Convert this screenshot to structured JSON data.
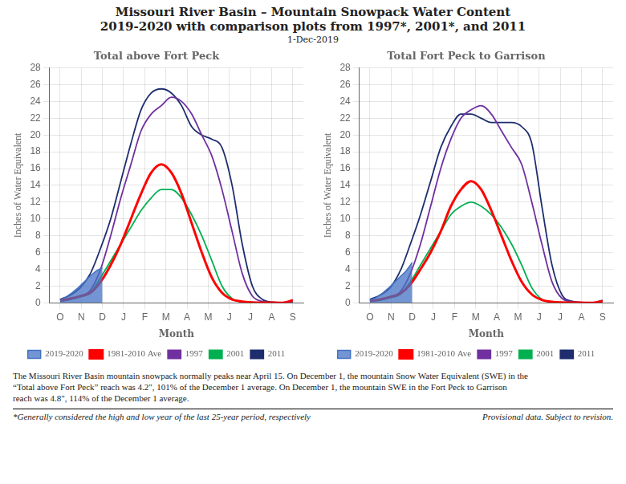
{
  "title": [
    "Missouri River Basin – Mountain Snowpack Water Content",
    "2019-2020 with comparison plots from 1997*, 2001*, and 2011"
  ],
  "subtitle": "1-Dec-2019",
  "annotations": [
    "The Missouri River Basin mountain snowpack normally peaks near April 15.  On December 1, the mountain Snow Water Equivalent (SWE) in the",
    "“Total above Fort Peck” reach was 4.2\", 101% of the December 1 average.  On December 1, the mountain SWE  in the Fort Peck to Garrison",
    "reach was 4.8\", 114% of the December 1 average.",
    "*Generally considered the high and low year of the last 25-year period, respectively",
    "Provisional data. Subject to revision."
  ],
  "chart_data": [
    {
      "type": "line",
      "title": "Total above Fort Peck",
      "x_label": "Month",
      "y_label": "Inches of Water Equivalent",
      "xlim": [
        -0.5,
        11.5
      ],
      "xticks": [
        {
          "value": 0,
          "label": "O"
        },
        {
          "value": 1,
          "label": "N"
        },
        {
          "value": 2,
          "label": "D"
        },
        {
          "value": 3,
          "label": "J"
        },
        {
          "value": 4,
          "label": "F"
        },
        {
          "value": 5,
          "label": "M"
        },
        {
          "value": 6,
          "label": "A"
        },
        {
          "value": 7,
          "label": "M"
        },
        {
          "value": 8,
          "label": "J"
        },
        {
          "value": 9,
          "label": "J"
        },
        {
          "value": 10,
          "label": "A"
        },
        {
          "value": 11,
          "label": "S"
        }
      ],
      "ylim": [
        0,
        28
      ],
      "yticks": [
        0,
        2,
        4,
        6,
        8,
        10,
        12,
        14,
        16,
        18,
        20,
        22,
        24,
        26,
        28
      ],
      "grid": true,
      "legend": "bottom",
      "series": [
        {
          "name": "2019-2020",
          "type": "area",
          "color": "#4472C4",
          "x": [
            0,
            0.2857,
            0.5714,
            0.8571,
            1.1429,
            1.4286,
            1.7143,
            2
          ],
          "values": [
            0.3,
            0.7,
            1.2,
            1.8,
            2.5,
            3.2,
            3.8,
            4.2
          ]
        },
        {
          "name": "1981-2010 Ave",
          "type": "line",
          "color": "#FF0000",
          "x": [
            0,
            0.4783,
            0.9565,
            1.4348,
            1.913,
            2.3913,
            2.8696,
            3.3478,
            3.8261,
            4.3043,
            4.7826,
            5.2609,
            5.7391,
            6.2174,
            6.6957,
            7.1739,
            7.6522,
            8.1304,
            8.6087,
            9.087,
            9.5652,
            10.0435,
            10.5217,
            11
          ],
          "values": [
            0.3,
            0.5,
            0.8,
            1.2,
            2.5,
            4.5,
            7.0,
            10.0,
            13.0,
            15.5,
            16.5,
            15.5,
            13.0,
            9.5,
            6.0,
            3.0,
            1.2,
            0.4,
            0.15,
            0.05,
            0.02,
            0.01,
            0.005,
            0.3
          ]
        },
        {
          "name": "1997",
          "type": "line",
          "color": "#7030A0",
          "x": [
            0,
            0.4783,
            0.9565,
            1.4348,
            1.913,
            2.3913,
            2.8696,
            3.3478,
            3.8261,
            4.3043,
            4.7826,
            5.2609,
            5.7391,
            6.2174,
            6.6957,
            7.1739,
            7.6522,
            8.1304,
            8.6087,
            9.087,
            9.5652,
            10.0435,
            10.5217,
            11
          ],
          "values": [
            0.2,
            0.4,
            0.8,
            1.5,
            4.0,
            8.0,
            12.5,
            16.5,
            20.5,
            22.5,
            23.5,
            24.5,
            24.0,
            22.5,
            20.0,
            17.5,
            13.5,
            8.5,
            3.5,
            0.8,
            0.15,
            0.02,
            0.005,
            0.1
          ]
        },
        {
          "name": "2001",
          "type": "line",
          "color": "#00B050",
          "x": [
            0,
            0.4783,
            0.9565,
            1.4348,
            1.913,
            2.3913,
            2.8696,
            3.3478,
            3.8261,
            4.3043,
            4.7826,
            5.2609,
            5.7391,
            6.2174,
            6.6957,
            7.1739,
            7.6522,
            8.1304,
            8.6087,
            9.087,
            9.5652,
            10.0435,
            10.5217,
            11
          ],
          "values": [
            0.2,
            0.4,
            0.7,
            1.2,
            3.0,
            5.0,
            7.0,
            9.0,
            11.0,
            12.5,
            13.5,
            13.5,
            12.5,
            10.5,
            8.0,
            5.0,
            2.0,
            0.5,
            0.1,
            0.02,
            0.005,
            0.002,
            0.001,
            0.1
          ]
        },
        {
          "name": "2011",
          "type": "line",
          "color": "#1F2D6E",
          "x": [
            0,
            0.4783,
            0.9565,
            1.4348,
            1.913,
            2.3913,
            2.8696,
            3.3478,
            3.8261,
            4.3043,
            4.7826,
            5.2609,
            5.7391,
            6.2174,
            6.6957,
            7.1739,
            7.6522,
            8.1304,
            8.6087,
            9.087,
            9.5652,
            10.0435,
            10.5217,
            11
          ],
          "values": [
            0.4,
            0.9,
            1.8,
            3.5,
            6.5,
            10.0,
            14.5,
            19.0,
            23.0,
            25.0,
            25.5,
            25.0,
            23.5,
            21.0,
            20.0,
            19.5,
            18.5,
            14.0,
            7.0,
            2.0,
            0.4,
            0.08,
            0.01,
            0.3
          ]
        }
      ]
    },
    {
      "type": "line",
      "title": "Total Fort Peck to Garrison",
      "x_label": "Month",
      "y_label": "Inches of Water Equivalent",
      "xlim": [
        -0.5,
        11.5
      ],
      "xticks": [
        {
          "value": 0,
          "label": "O"
        },
        {
          "value": 1,
          "label": "N"
        },
        {
          "value": 2,
          "label": "D"
        },
        {
          "value": 3,
          "label": "J"
        },
        {
          "value": 4,
          "label": "F"
        },
        {
          "value": 5,
          "label": "M"
        },
        {
          "value": 6,
          "label": "A"
        },
        {
          "value": 7,
          "label": "M"
        },
        {
          "value": 8,
          "label": "J"
        },
        {
          "value": 9,
          "label": "J"
        },
        {
          "value": 10,
          "label": "A"
        },
        {
          "value": 11,
          "label": "S"
        }
      ],
      "ylim": [
        0,
        28
      ],
      "yticks": [
        0,
        2,
        4,
        6,
        8,
        10,
        12,
        14,
        16,
        18,
        20,
        22,
        24,
        26,
        28
      ],
      "grid": true,
      "legend": "bottom",
      "series": [
        {
          "name": "2019-2020",
          "type": "area",
          "color": "#4472C4",
          "x": [
            0,
            0.2857,
            0.5714,
            0.8571,
            1.1429,
            1.4286,
            1.7143,
            2
          ],
          "values": [
            0.3,
            0.6,
            1.1,
            1.7,
            2.4,
            3.1,
            3.8,
            4.8
          ]
        },
        {
          "name": "1981-2010 Ave",
          "type": "line",
          "color": "#FF0000",
          "x": [
            0,
            0.4783,
            0.9565,
            1.4348,
            1.913,
            2.3913,
            2.8696,
            3.3478,
            3.8261,
            4.3043,
            4.7826,
            5.2609,
            5.7391,
            6.2174,
            6.6957,
            7.1739,
            7.6522,
            8.1304,
            8.6087,
            9.087,
            9.5652,
            10.0435,
            10.5217,
            11
          ],
          "values": [
            0.2,
            0.4,
            0.7,
            1.1,
            2.2,
            4.0,
            6.0,
            8.5,
            11.5,
            13.5,
            14.5,
            13.5,
            11.0,
            8.0,
            5.0,
            2.5,
            1.0,
            0.35,
            0.12,
            0.04,
            0.015,
            0.008,
            0.003,
            0.2
          ]
        },
        {
          "name": "1997",
          "type": "line",
          "color": "#7030A0",
          "x": [
            0,
            0.4783,
            0.9565,
            1.4348,
            1.913,
            2.3913,
            2.8696,
            3.3478,
            3.8261,
            4.3043,
            4.7826,
            5.2609,
            5.7391,
            6.2174,
            6.6957,
            7.1739,
            7.6522,
            8.1304,
            8.6087,
            9.087,
            9.5652,
            10.0435,
            10.5217,
            11
          ],
          "values": [
            0.2,
            0.4,
            0.7,
            1.3,
            3.5,
            7.0,
            11.5,
            16.0,
            19.5,
            22.0,
            23.0,
            23.5,
            22.5,
            20.5,
            18.5,
            16.5,
            12.0,
            7.0,
            2.5,
            0.5,
            0.1,
            0.015,
            0.003,
            0.1
          ]
        },
        {
          "name": "2001",
          "type": "line",
          "color": "#00B050",
          "x": [
            0,
            0.4783,
            0.9565,
            1.4348,
            1.913,
            2.3913,
            2.8696,
            3.3478,
            3.8261,
            4.3043,
            4.7826,
            5.2609,
            5.7391,
            6.2174,
            6.6957,
            7.1739,
            7.6522,
            8.1304,
            8.6087,
            9.087,
            9.5652,
            10.0435,
            10.5217,
            11
          ],
          "values": [
            0.2,
            0.3,
            0.6,
            1.0,
            2.5,
            4.5,
            6.5,
            8.5,
            10.5,
            11.5,
            12.0,
            11.5,
            10.5,
            9.0,
            7.0,
            4.5,
            1.8,
            0.4,
            0.08,
            0.015,
            0.004,
            0.002,
            0.001,
            0.08
          ]
        },
        {
          "name": "2011",
          "type": "line",
          "color": "#1F2D6E",
          "x": [
            0,
            0.4783,
            0.9565,
            1.4348,
            1.913,
            2.3913,
            2.8696,
            3.3478,
            3.8261,
            4.3043,
            4.7826,
            5.2609,
            5.7391,
            6.2174,
            6.6957,
            7.1739,
            7.6522,
            8.1304,
            8.6087,
            9.087,
            9.5652,
            10.0435,
            10.5217,
            11
          ],
          "values": [
            0.4,
            0.9,
            1.8,
            3.8,
            7.0,
            10.5,
            14.5,
            18.5,
            21.0,
            22.5,
            22.5,
            22.0,
            21.5,
            21.5,
            21.5,
            21.0,
            19.0,
            11.5,
            4.5,
            0.9,
            0.18,
            0.04,
            0.008,
            0.3
          ]
        }
      ]
    }
  ]
}
